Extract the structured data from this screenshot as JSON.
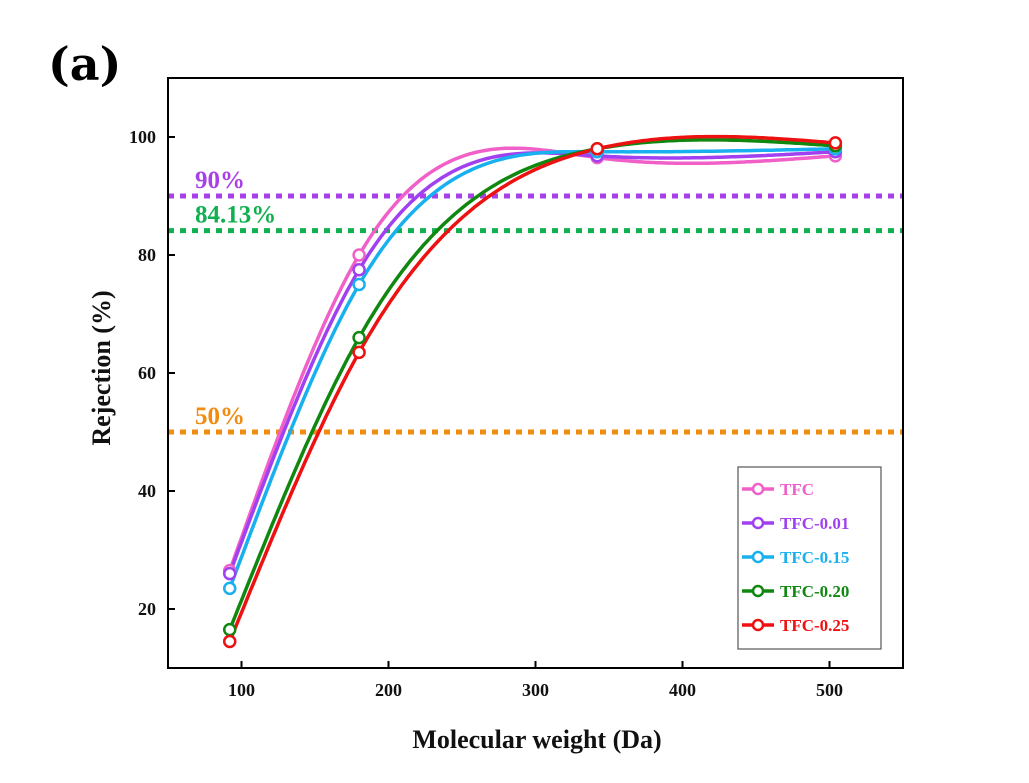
{
  "panel_label": "(a)",
  "chart_data": {
    "type": "line",
    "xlabel": "Molecular weight (Da)",
    "ylabel": "Rejection (%)",
    "xlim": [
      50,
      550
    ],
    "ylim": [
      10,
      110
    ],
    "xticks": [
      100,
      200,
      300,
      400,
      500
    ],
    "yticks": [
      20,
      40,
      60,
      80,
      100
    ],
    "x": [
      92,
      180,
      342,
      504
    ],
    "series": [
      {
        "name": "TFC",
        "color": "#f060c8",
        "values": [
          26.5,
          80.0,
          96.5,
          96.8
        ]
      },
      {
        "name": "TFC-0.01",
        "color": "#a040f0",
        "values": [
          26.0,
          77.5,
          96.8,
          97.5
        ]
      },
      {
        "name": "TFC-0.15",
        "color": "#18b0ee",
        "values": [
          23.5,
          75.0,
          97.5,
          98.0
        ]
      },
      {
        "name": "TFC-0.20",
        "color": "#108810",
        "values": [
          16.5,
          66.0,
          98.0,
          98.5
        ]
      },
      {
        "name": "TFC-0.25",
        "color": "#ee1111",
        "values": [
          14.5,
          63.5,
          98.0,
          99.0
        ]
      }
    ],
    "reference_lines": [
      {
        "label": "90%",
        "value": 90,
        "color": "#a840e8"
      },
      {
        "label": "84.13%",
        "value": 84.13,
        "color": "#10b050"
      },
      {
        "label": "50%",
        "value": 50,
        "color": "#f08c10"
      }
    ],
    "legend_position": "bottom-right",
    "grid": false
  }
}
